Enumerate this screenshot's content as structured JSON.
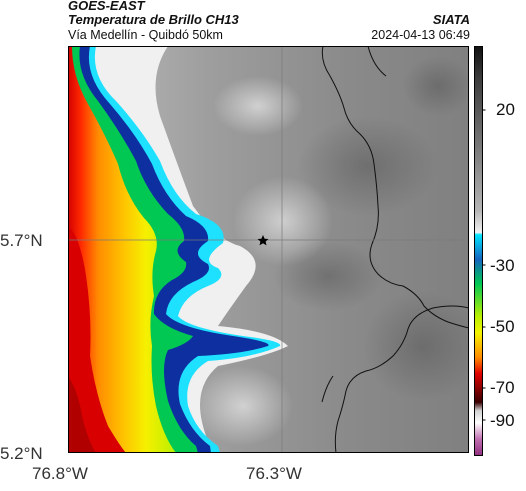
{
  "header": {
    "satellite": "GOES-EAST",
    "product": "Temperatura de Brillo CH13",
    "region": "Vía Medellín - Quibdó 50km",
    "agency": "SIATA",
    "timestamp": "2024-04-13 06:49"
  },
  "map": {
    "lat_ticks": [
      "5.7°N",
      "5.2°N"
    ],
    "lon_ticks": [
      "76.8°W",
      "76.3°W"
    ],
    "marker": "star",
    "gridlines": true,
    "features": [
      "brightness-temperature-field",
      "department-boundaries",
      "star-marker"
    ]
  },
  "colorbar": {
    "tick_labels": [
      "20",
      "-30",
      "-50",
      "-70",
      "-90"
    ],
    "palette": [
      "#1a1a1a",
      "#555555",
      "#9a9a9a",
      "#e6e6e6",
      "#00e5ff",
      "#1565c0",
      "#00c853",
      "#f4f400",
      "#ff8c00",
      "#e00000",
      "#4a0000",
      "#ffffff",
      "#a8408c"
    ]
  },
  "colors": {
    "cloud_cold": "#e00000",
    "cloud_mid": "#00c853",
    "clear": "#7f7f7f"
  }
}
